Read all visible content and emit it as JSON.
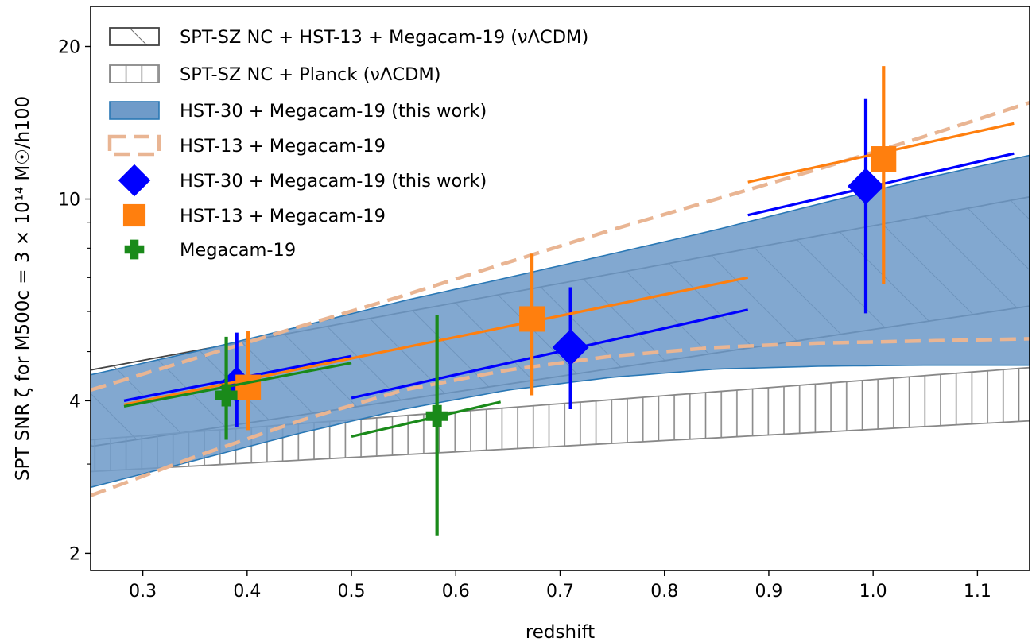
{
  "chart_data": {
    "type": "scatter",
    "xlabel": "redshift",
    "ylabel": "SPT SNR ζ for M500c = 3 × 10¹⁴ M☉/h100",
    "xlim": [
      0.25,
      1.15
    ],
    "ylim": [
      1.85,
      24
    ],
    "yscale": "log",
    "xticks": [
      0.3,
      0.4,
      0.5,
      0.6,
      0.7,
      0.8,
      0.9,
      1.0,
      1.1
    ],
    "xtick_labels": [
      "0.3",
      "0.4",
      "0.5",
      "0.6",
      "0.7",
      "0.8",
      "0.9",
      "1.0",
      "1.1"
    ],
    "yticks": [
      2,
      4,
      10,
      20
    ],
    "ytick_labels": [
      "2",
      "4",
      "10",
      "20"
    ],
    "yminor": [
      3,
      5,
      6,
      7,
      8,
      9
    ],
    "grid": false,
    "legend_position": "upper-left",
    "legend": [
      {
        "label": "SPT-SZ NC + HST-13 + Megacam-19 (νΛCDM)",
        "marker": "hatch-diagonal",
        "color": "#444444"
      },
      {
        "label": "SPT-SZ NC + Planck (νΛCDM)",
        "marker": "hatch-vertical",
        "color": "#888888"
      },
      {
        "label": "HST-30 + Megacam-19 (this work)",
        "marker": "filled-band",
        "color": "#6f9bc9"
      },
      {
        "label": "HST-13 + Megacam-19",
        "marker": "dashed-band",
        "color": "#e9b593"
      },
      {
        "label": "HST-30 + Megacam-19 (this work)",
        "marker": "diamond",
        "color": "#0000ff"
      },
      {
        "label": "HST-13 + Megacam-19",
        "marker": "square",
        "color": "#ff7f0e"
      },
      {
        "label": "Megacam-19",
        "marker": "plus",
        "color": "#1a8a1a"
      }
    ],
    "bands": [
      {
        "name": "SPT-SZ NC + HST-13 + Megacam-19 (νΛCDM)",
        "style": "hatch-diagonal",
        "x": [
          0.25,
          1.15
        ],
        "lower": [
          3.25,
          6.15
        ],
        "upper": [
          4.6,
          10.1
        ]
      },
      {
        "name": "SPT-SZ NC + Planck (νΛCDM)",
        "style": "hatch-vertical",
        "x": [
          0.25,
          1.15
        ],
        "lower": [
          2.9,
          3.65
        ],
        "upper": [
          3.35,
          4.65
        ]
      },
      {
        "name": "HST-30 + Megacam-19 (this work)",
        "style": "filled",
        "x": [
          0.25,
          0.35,
          0.45,
          0.55,
          0.65,
          0.75,
          0.85,
          0.95,
          1.05,
          1.15
        ],
        "lower": [
          2.7,
          3.05,
          3.45,
          3.85,
          4.2,
          4.45,
          4.62,
          4.68,
          4.7,
          4.7
        ],
        "upper": [
          4.5,
          5.0,
          5.6,
          6.3,
          7.0,
          7.8,
          8.7,
          9.8,
          11.0,
          12.2
        ]
      },
      {
        "name": "HST-13 + Megacam-19",
        "style": "dashed",
        "x": [
          0.25,
          0.35,
          0.45,
          0.55,
          0.65,
          0.75,
          0.85,
          0.95,
          1.05,
          1.15
        ],
        "lower": [
          2.6,
          3.1,
          3.65,
          4.2,
          4.6,
          4.9,
          5.1,
          5.2,
          5.25,
          5.3
        ],
        "upper": [
          4.2,
          4.85,
          5.6,
          6.45,
          7.5,
          8.7,
          10.0,
          11.5,
          13.3,
          15.5
        ]
      }
    ],
    "series": [
      {
        "name": "HST-30 + Megacam-19 (this work)",
        "marker": "diamond",
        "color": "#0000ff",
        "points": [
          {
            "x": 0.39,
            "y": 4.3,
            "xerr": [
              0.282,
              0.5
            ],
            "yerr": [
              3.55,
              5.45
            ],
            "slope": [
              4.0,
              4.9
            ]
          },
          {
            "x": 0.71,
            "y": 5.1,
            "xerr": [
              0.5,
              0.88
            ],
            "yerr": [
              3.85,
              6.7
            ],
            "slope": [
              4.05,
              6.05
            ]
          },
          {
            "x": 0.993,
            "y": 10.6,
            "xerr": [
              0.88,
              1.135
            ],
            "yerr": [
              5.95,
              15.8
            ],
            "slope": [
              9.3,
              12.3
            ]
          }
        ]
      },
      {
        "name": "HST-13 + Megacam-19",
        "marker": "square",
        "color": "#ff7f0e",
        "points": [
          {
            "x": 0.401,
            "y": 4.25,
            "xerr": [
              0.282,
              0.5
            ],
            "yerr": [
              3.5,
              5.5
            ],
            "slope": [
              3.93,
              4.85
            ]
          },
          {
            "x": 0.673,
            "y": 5.8,
            "xerr": [
              0.5,
              0.88
            ],
            "yerr": [
              4.1,
              7.8
            ],
            "slope": [
              4.85,
              7.0
            ]
          },
          {
            "x": 1.01,
            "y": 12.0,
            "xerr": [
              0.88,
              1.135
            ],
            "yerr": [
              6.8,
              18.3
            ],
            "slope": [
              10.8,
              14.1
            ]
          }
        ]
      },
      {
        "name": "Megacam-19",
        "marker": "plus",
        "color": "#1a8a1a",
        "points": [
          {
            "x": 0.38,
            "y": 4.1,
            "xerr": [
              0.282,
              0.5
            ],
            "yerr": [
              3.35,
              5.35
            ],
            "slope": [
              3.9,
              4.75
            ]
          },
          {
            "x": 0.582,
            "y": 3.73,
            "xerr": [
              0.5,
              0.643
            ],
            "yerr": [
              2.17,
              5.9
            ],
            "slope": [
              3.4,
              3.98
            ]
          }
        ]
      }
    ]
  }
}
